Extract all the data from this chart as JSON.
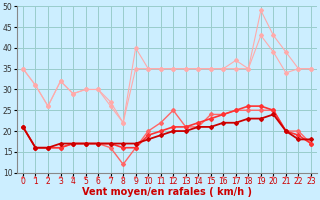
{
  "x": [
    0,
    1,
    2,
    3,
    4,
    5,
    6,
    7,
    8,
    9,
    10,
    11,
    12,
    13,
    14,
    15,
    16,
    17,
    18,
    19,
    20,
    21,
    22,
    23
  ],
  "series": [
    {
      "color": "#ffaaaa",
      "lw": 0.8,
      "values": [
        35,
        31,
        26,
        32,
        29,
        30,
        30,
        27,
        22,
        40,
        35,
        35,
        35,
        35,
        35,
        35,
        35,
        37,
        35,
        49,
        43,
        39,
        35,
        35
      ]
    },
    {
      "color": "#ffaaaa",
      "lw": 0.8,
      "values": [
        35,
        31,
        26,
        32,
        29,
        30,
        30,
        26,
        22,
        35,
        35,
        35,
        35,
        35,
        35,
        35,
        35,
        35,
        35,
        43,
        39,
        34,
        35,
        35
      ]
    },
    {
      "color": "#ff6666",
      "lw": 1.0,
      "values": [
        21,
        16,
        16,
        16,
        17,
        17,
        17,
        16,
        12,
        16,
        20,
        22,
        25,
        21,
        21,
        24,
        24,
        25,
        25,
        25,
        25,
        20,
        20,
        17
      ]
    },
    {
      "color": "#ff3333",
      "lw": 1.2,
      "values": [
        21,
        16,
        16,
        16,
        17,
        17,
        17,
        17,
        16,
        16,
        19,
        20,
        21,
        21,
        22,
        23,
        24,
        25,
        26,
        26,
        25,
        20,
        19,
        17
      ]
    },
    {
      "color": "#cc0000",
      "lw": 1.3,
      "values": [
        21,
        16,
        16,
        17,
        17,
        17,
        17,
        17,
        17,
        17,
        18,
        19,
        20,
        20,
        21,
        21,
        22,
        22,
        23,
        23,
        24,
        20,
        18,
        18
      ]
    }
  ],
  "xlabel": "Vent moyen/en rafales ( km/h )",
  "xlim": [
    -0.5,
    23.5
  ],
  "ylim": [
    10,
    50
  ],
  "yticks": [
    10,
    15,
    20,
    25,
    30,
    35,
    40,
    45,
    50
  ],
  "xticks": [
    0,
    1,
    2,
    3,
    4,
    5,
    6,
    7,
    8,
    9,
    10,
    11,
    12,
    13,
    14,
    15,
    16,
    17,
    18,
    19,
    20,
    21,
    22,
    23
  ],
  "bg_color": "#cceeff",
  "grid_color": "#99cccc",
  "arrow_color": "#ff4444",
  "marker": "D",
  "marker_size": 2.0,
  "xlabel_color": "#cc0000",
  "xlabel_fontsize": 7,
  "tick_fontsize": 5.5,
  "xtick_color": "#cc0000",
  "ytick_color": "#333333"
}
